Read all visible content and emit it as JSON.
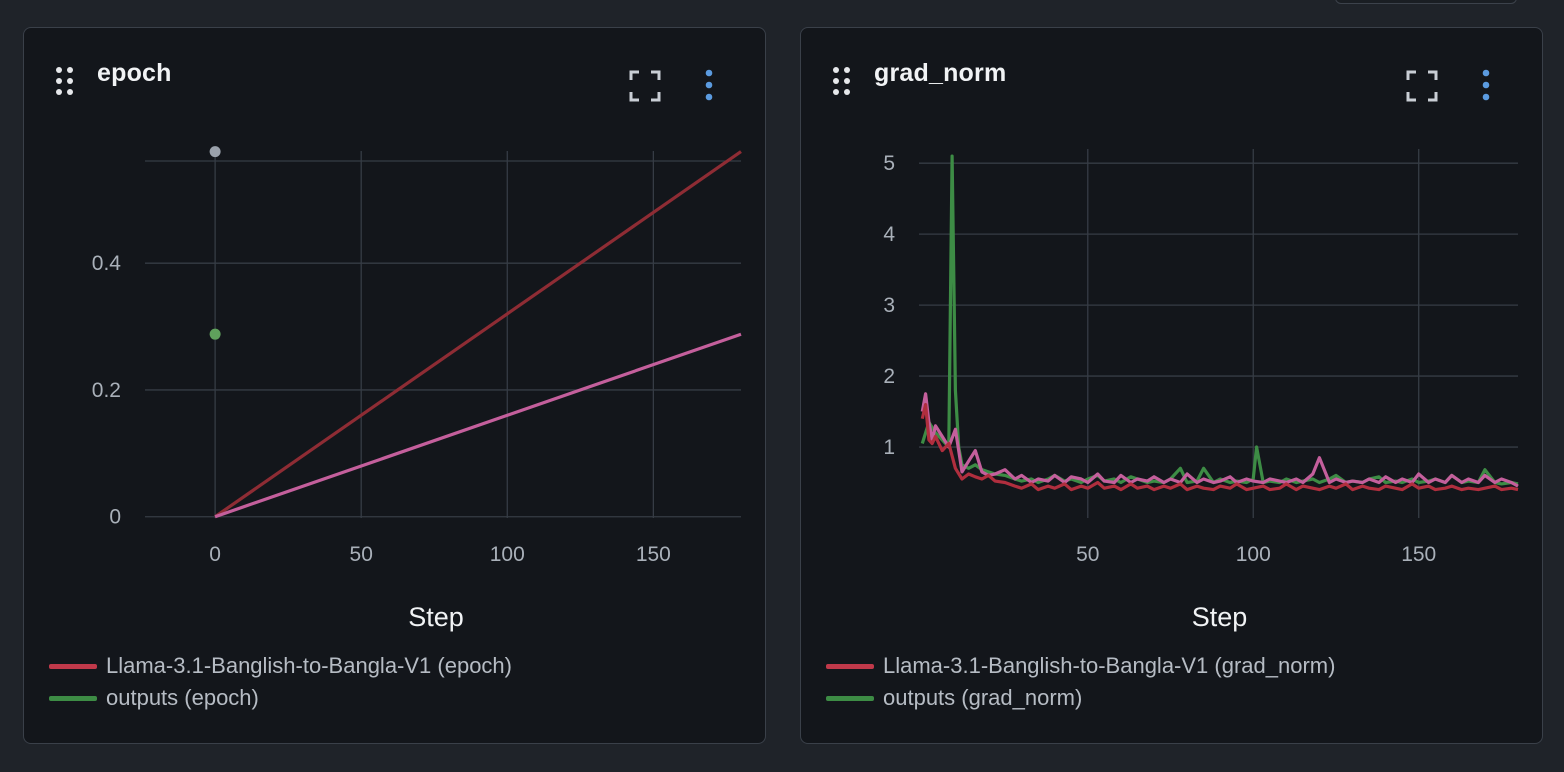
{
  "charts": [
    {
      "id": "epoch",
      "title": "epoch",
      "legend": [
        {
          "label": "Llama-3.1-Banglish-to-Bangla-V1 (epoch)",
          "color": "#c0394a"
        },
        {
          "label": "outputs (epoch)",
          "color": "#3d8c45"
        }
      ],
      "icons": {
        "drag": "drag-handle-icon",
        "expand": "expand-icon",
        "menu": "vertical-dots-icon"
      }
    },
    {
      "id": "grad_norm",
      "title": "grad_norm",
      "legend": [
        {
          "label": "Llama-3.1-Banglish-to-Bangla-V1 (grad_norm)",
          "color": "#c0394a"
        },
        {
          "label": "outputs (grad_norm)",
          "color": "#3d8c45"
        }
      ],
      "icons": {
        "drag": "drag-handle-icon",
        "expand": "expand-icon",
        "menu": "vertical-dots-icon"
      }
    }
  ],
  "chart_data": [
    {
      "type": "line",
      "title": "epoch",
      "xlabel": "Step",
      "ylabel": "",
      "xlim": [
        -24,
        180
      ],
      "ylim": [
        -0.002,
        0.577
      ],
      "xticks": [
        0,
        50,
        100,
        150
      ],
      "yticks": [
        0,
        0.2,
        0.4
      ],
      "ytick_labels": [
        "0",
        "0.2",
        "0.4"
      ],
      "grid": true,
      "legend_position": "bottom-left",
      "series": [
        {
          "color": "#8e2c34",
          "x": [
            0,
            180
          ],
          "y": [
            0,
            0.576
          ]
        },
        {
          "color": "#c45f9c",
          "x": [
            0,
            180
          ],
          "y": [
            0,
            0.288
          ]
        }
      ],
      "points": [
        {
          "x": 0,
          "y": 0.576,
          "color": "#9aa1ab"
        },
        {
          "x": 0,
          "y": 0.288,
          "color": "#5fa15c"
        }
      ]
    },
    {
      "type": "line",
      "title": "grad_norm",
      "xlabel": "Step",
      "ylabel": "",
      "xlim": [
        -1,
        180
      ],
      "ylim": [
        0,
        5.2
      ],
      "xticks": [
        50,
        100,
        150
      ],
      "yticks": [
        1,
        2,
        3,
        4,
        5
      ],
      "grid": true,
      "legend_position": "bottom-left",
      "series": [
        {
          "name": "outputs (grad_norm)",
          "color": "#3d8c45",
          "x": [
            0,
            2,
            4,
            6,
            8,
            9,
            10,
            11,
            12,
            14,
            16,
            18,
            20,
            22,
            25,
            28,
            30,
            33,
            35,
            38,
            40,
            43,
            45,
            48,
            50,
            53,
            55,
            58,
            60,
            63,
            65,
            68,
            70,
            73,
            75,
            78,
            80,
            83,
            85,
            88,
            90,
            93,
            95,
            98,
            100,
            101,
            103,
            105,
            108,
            110,
            113,
            115,
            118,
            120,
            123,
            125,
            128,
            130,
            133,
            135,
            138,
            140,
            143,
            145,
            148,
            150,
            153,
            155,
            158,
            160,
            163,
            165,
            168,
            170,
            173,
            175,
            178,
            180
          ],
          "y": [
            1.05,
            1.35,
            1.2,
            1.1,
            1.0,
            5.1,
            1.8,
            1.0,
            0.75,
            0.7,
            0.75,
            0.68,
            0.65,
            0.62,
            0.6,
            0.55,
            0.52,
            0.55,
            0.5,
            0.55,
            0.6,
            0.52,
            0.55,
            0.5,
            0.55,
            0.6,
            0.52,
            0.55,
            0.5,
            0.58,
            0.55,
            0.5,
            0.52,
            0.5,
            0.55,
            0.7,
            0.5,
            0.52,
            0.7,
            0.5,
            0.55,
            0.5,
            0.52,
            0.5,
            0.55,
            1.0,
            0.5,
            0.52,
            0.5,
            0.55,
            0.5,
            0.52,
            0.55,
            0.5,
            0.55,
            0.6,
            0.5,
            0.52,
            0.5,
            0.55,
            0.58,
            0.5,
            0.52,
            0.5,
            0.55,
            0.5,
            0.52,
            0.55,
            0.5,
            0.6,
            0.5,
            0.52,
            0.5,
            0.68,
            0.5,
            0.48,
            0.5,
            0.48
          ]
        },
        {
          "color": "#c45f9c",
          "x": [
            0,
            1,
            2,
            3,
            4,
            6,
            8,
            10,
            12,
            14,
            16,
            18,
            20,
            22,
            25,
            28,
            30,
            33,
            35,
            38,
            40,
            43,
            45,
            48,
            50,
            53,
            55,
            58,
            60,
            63,
            65,
            68,
            70,
            73,
            75,
            78,
            80,
            83,
            85,
            88,
            90,
            93,
            95,
            98,
            100,
            103,
            105,
            108,
            110,
            113,
            115,
            118,
            120,
            123,
            125,
            128,
            130,
            133,
            135,
            138,
            140,
            143,
            145,
            148,
            150,
            153,
            155,
            158,
            160,
            163,
            165,
            168,
            170,
            173,
            175,
            178,
            180
          ],
          "y": [
            1.5,
            1.75,
            1.35,
            1.1,
            1.3,
            1.15,
            1.0,
            1.25,
            0.65,
            0.8,
            0.95,
            0.65,
            0.6,
            0.62,
            0.68,
            0.55,
            0.6,
            0.5,
            0.55,
            0.52,
            0.6,
            0.5,
            0.58,
            0.55,
            0.5,
            0.62,
            0.52,
            0.5,
            0.6,
            0.5,
            0.55,
            0.52,
            0.58,
            0.5,
            0.55,
            0.5,
            0.62,
            0.5,
            0.55,
            0.5,
            0.52,
            0.58,
            0.5,
            0.55,
            0.52,
            0.5,
            0.55,
            0.52,
            0.5,
            0.55,
            0.5,
            0.62,
            0.85,
            0.5,
            0.55,
            0.5,
            0.52,
            0.5,
            0.55,
            0.5,
            0.58,
            0.5,
            0.55,
            0.5,
            0.62,
            0.5,
            0.55,
            0.5,
            0.6,
            0.5,
            0.55,
            0.5,
            0.6,
            0.5,
            0.55,
            0.5,
            0.45
          ]
        },
        {
          "name": "Llama-3.1-Banglish-to-Bangla-V1 (grad_norm)",
          "color": "#b02e3e",
          "x": [
            0,
            1,
            2,
            3,
            4,
            6,
            8,
            10,
            12,
            14,
            16,
            18,
            20,
            22,
            25,
            28,
            30,
            33,
            35,
            38,
            40,
            43,
            45,
            48,
            50,
            53,
            55,
            58,
            60,
            63,
            65,
            68,
            70,
            73,
            75,
            78,
            80,
            83,
            85,
            88,
            90,
            93,
            95,
            98,
            100,
            103,
            105,
            108,
            110,
            113,
            115,
            118,
            120,
            123,
            125,
            128,
            130,
            133,
            135,
            138,
            140,
            143,
            145,
            148,
            150,
            153,
            155,
            158,
            160,
            163,
            165,
            168,
            170,
            173,
            175,
            178,
            180
          ],
          "y": [
            1.4,
            1.6,
            1.1,
            1.05,
            1.15,
            0.95,
            1.05,
            0.7,
            0.55,
            0.62,
            0.58,
            0.55,
            0.6,
            0.52,
            0.5,
            0.45,
            0.42,
            0.48,
            0.4,
            0.45,
            0.42,
            0.48,
            0.4,
            0.45,
            0.42,
            0.5,
            0.42,
            0.45,
            0.4,
            0.48,
            0.42,
            0.45,
            0.4,
            0.45,
            0.42,
            0.48,
            0.4,
            0.45,
            0.42,
            0.4,
            0.45,
            0.42,
            0.48,
            0.4,
            0.42,
            0.45,
            0.4,
            0.42,
            0.48,
            0.4,
            0.45,
            0.42,
            0.4,
            0.45,
            0.42,
            0.48,
            0.4,
            0.45,
            0.42,
            0.4,
            0.45,
            0.42,
            0.4,
            0.48,
            0.42,
            0.45,
            0.4,
            0.42,
            0.45,
            0.4,
            0.42,
            0.4,
            0.42,
            0.45,
            0.4,
            0.42,
            0.4
          ]
        }
      ]
    }
  ]
}
